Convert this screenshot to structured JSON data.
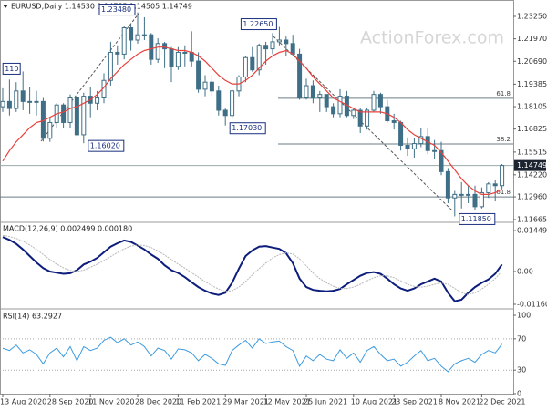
{
  "chart_data": [
    {
      "type": "candlestick",
      "title": "EURUSD,Daily  1.14530 1.14755 1.14505 1.14749",
      "watermark": "ActionForex.com",
      "categories": [
        "13 Aug 2020",
        null,
        null,
        null,
        null,
        null,
        null,
        "28 Sep 2020",
        null,
        null,
        null,
        null,
        null,
        "11 Nov 2020",
        null,
        null,
        null,
        null,
        null,
        null,
        "28 Dec 2020",
        null,
        null,
        null,
        null,
        null,
        "11 Feb 2021",
        null,
        null,
        null,
        null,
        null,
        null,
        "29 Mar 2021",
        null,
        null,
        null,
        null,
        null,
        "12 May 2021",
        null,
        null,
        null,
        null,
        null,
        "25 Jun 2021",
        null,
        null,
        null,
        null,
        null,
        null,
        "10 Aug 2021",
        null,
        null,
        null,
        null,
        null,
        "23 Sep 2021",
        null,
        null,
        null,
        null,
        null,
        null,
        "8 Nov 2021",
        null,
        null,
        null,
        null,
        null,
        "22 Dec 2021",
        null,
        null,
        null
      ],
      "open": [
        1.181,
        1.184,
        1.18,
        1.19,
        1.184,
        1.184,
        1.184,
        1.163,
        1.172,
        1.182,
        1.172,
        1.186,
        1.165,
        1.187,
        1.183,
        1.186,
        1.196,
        1.212,
        1.211,
        1.226,
        1.219,
        1.222,
        1.222,
        1.208,
        1.217,
        1.214,
        1.204,
        1.212,
        1.212,
        1.207,
        1.191,
        1.195,
        1.19,
        1.179,
        1.176,
        1.19,
        1.198,
        1.209,
        1.202,
        1.216,
        1.214,
        1.218,
        1.219,
        1.217,
        1.211,
        1.186,
        1.193,
        1.186,
        1.188,
        1.181,
        1.177,
        1.187,
        1.176,
        1.179,
        1.17,
        1.179,
        1.188,
        1.181,
        1.173,
        1.172,
        1.159,
        1.157,
        1.16,
        1.164,
        1.156,
        1.156,
        1.144,
        1.129,
        1.131,
        1.131,
        1.131,
        1.124,
        1.132,
        1.137,
        1.136
      ],
      "high": [
        1.1915,
        1.1965,
        1.195,
        1.2011,
        1.192,
        1.19,
        1.186,
        1.175,
        1.183,
        1.183,
        1.188,
        1.188,
        1.189,
        1.192,
        1.19,
        1.2,
        1.218,
        1.216,
        1.227,
        1.228,
        1.2348,
        1.232,
        1.223,
        1.22,
        1.218,
        1.215,
        1.215,
        1.216,
        1.224,
        1.212,
        1.199,
        1.199,
        1.193,
        1.18,
        1.191,
        1.199,
        1.21,
        1.215,
        1.217,
        1.218,
        1.223,
        1.2265,
        1.221,
        1.222,
        1.214,
        1.197,
        1.196,
        1.19,
        1.188,
        1.183,
        1.191,
        1.19,
        1.18,
        1.18,
        1.18,
        1.19,
        1.189,
        1.185,
        1.177,
        1.173,
        1.163,
        1.163,
        1.169,
        1.169,
        1.162,
        1.161,
        1.146,
        1.133,
        1.138,
        1.136,
        1.136,
        1.135,
        1.138,
        1.139,
        1.1483
      ],
      "low": [
        1.178,
        1.176,
        1.178,
        1.179,
        1.177,
        1.176,
        1.1612,
        1.161,
        1.169,
        1.169,
        1.169,
        1.164,
        1.1602,
        1.175,
        1.179,
        1.183,
        1.193,
        1.205,
        1.208,
        1.213,
        1.217,
        1.219,
        1.205,
        1.206,
        1.203,
        1.195,
        1.202,
        1.204,
        1.204,
        1.189,
        1.187,
        1.187,
        1.176,
        1.1703,
        1.174,
        1.187,
        1.195,
        1.201,
        1.199,
        1.205,
        1.211,
        1.216,
        1.21,
        1.21,
        1.185,
        1.185,
        1.183,
        1.178,
        1.178,
        1.175,
        1.175,
        1.175,
        1.174,
        1.166,
        1.168,
        1.178,
        1.177,
        1.172,
        1.168,
        1.156,
        1.153,
        1.152,
        1.158,
        1.154,
        1.151,
        1.142,
        1.126,
        1.1185,
        1.123,
        1.126,
        1.122,
        1.123,
        1.129,
        1.127,
        1.134
      ],
      "close": [
        1.184,
        1.18,
        1.19,
        1.184,
        1.184,
        1.184,
        1.163,
        1.172,
        1.182,
        1.172,
        1.186,
        1.165,
        1.187,
        1.183,
        1.186,
        1.196,
        1.212,
        1.211,
        1.226,
        1.219,
        1.222,
        1.222,
        1.208,
        1.217,
        1.214,
        1.204,
        1.212,
        1.212,
        1.207,
        1.191,
        1.195,
        1.19,
        1.179,
        1.176,
        1.19,
        1.198,
        1.209,
        1.202,
        1.216,
        1.214,
        1.218,
        1.219,
        1.217,
        1.211,
        1.186,
        1.193,
        1.186,
        1.188,
        1.181,
        1.177,
        1.187,
        1.176,
        1.179,
        1.17,
        1.179,
        1.188,
        1.181,
        1.173,
        1.172,
        1.159,
        1.157,
        1.16,
        1.164,
        1.156,
        1.156,
        1.144,
        1.129,
        1.131,
        1.131,
        1.131,
        1.124,
        1.132,
        1.137,
        1.136,
        1.14749
      ],
      "color": "#3f6f86",
      "series": [
        {
          "color": "#e8413c",
          "values": [
            1.15,
            1.156,
            1.161,
            1.165,
            1.169,
            1.172,
            1.173,
            1.175,
            1.177,
            1.178,
            1.18,
            1.181,
            1.183,
            1.185,
            1.188,
            1.192,
            1.197,
            1.201,
            1.205,
            1.208,
            1.211,
            1.213,
            1.214,
            1.215,
            1.215,
            1.214,
            1.213,
            1.213,
            1.212,
            1.21,
            1.207,
            1.203,
            1.199,
            1.196,
            1.194,
            1.194,
            1.196,
            1.199,
            1.203,
            1.207,
            1.21,
            1.212,
            1.213,
            1.211,
            1.207,
            1.203,
            1.198,
            1.194,
            1.19,
            1.186,
            1.184,
            1.182,
            1.18,
            1.178,
            1.178,
            1.178,
            1.178,
            1.177,
            1.175,
            1.172,
            1.168,
            1.165,
            1.163,
            1.161,
            1.159,
            1.155,
            1.15,
            1.145,
            1.14,
            1.136,
            1.133,
            1.131,
            1.131,
            1.132,
            1.134
          ]
        }
      ],
      "annotations": [
        {
          "label": "110",
          "value": 1.2011
        },
        {
          "label": "1.16020",
          "value": 1.1602
        },
        {
          "label": "1.23480",
          "value": 1.2348
        },
        {
          "label": "1.17030",
          "value": 1.1703
        },
        {
          "label": "1.22650",
          "value": 1.2265
        },
        {
          "label": "1.11850",
          "value": 1.1185
        }
      ],
      "levels": [
        {
          "label": "61.8",
          "value": 1.1858
        },
        {
          "label": "38.2",
          "value": 1.1598
        },
        {
          "label": "61.8",
          "value": 1.1296
        }
      ],
      "ylim": [
        1.11561,
        1.24081
      ],
      "yticks": [
        {
          "value": 1.2325,
          "label": "1.23250"
        },
        {
          "value": 1.2197,
          "label": "1.21970"
        },
        {
          "value": 1.2069,
          "label": "1.20690"
        },
        {
          "value": 1.19385,
          "label": "1.19385"
        },
        {
          "value": 1.18105,
          "label": "1.18105"
        },
        {
          "value": 1.16825,
          "label": "1.16825"
        },
        {
          "value": 1.15515,
          "label": "1.15515"
        },
        {
          "value": 1.1422,
          "label": "1.14220"
        },
        {
          "value": 1.1296,
          "label": "1.12960"
        },
        {
          "value": 1.11665,
          "label": "1.11665"
        }
      ]
    },
    {
      "type": "line",
      "title": "MACD(12,26,9) 0.002499 0.000180",
      "series": [
        {
          "color": "#0d1d7c",
          "values": [
            0.0122,
            0.0112,
            0.0098,
            0.0078,
            0.0055,
            0.0032,
            0.0012,
            0.0,
            -0.0004,
            -0.0008,
            -0.0006,
            0.0005,
            0.0025,
            0.0035,
            0.0048,
            0.0068,
            0.0088,
            0.01,
            0.011,
            0.0105,
            0.0092,
            0.0078,
            0.006,
            0.0045,
            0.0022,
            0.0005,
            -0.0005,
            -0.002,
            -0.0038,
            -0.0055,
            -0.0068,
            -0.0078,
            -0.0083,
            -0.0075,
            -0.004,
            0.001,
            0.0055,
            0.0075,
            0.0088,
            0.009,
            0.0085,
            0.008,
            0.0065,
            0.003,
            -0.0025,
            -0.0055,
            -0.0065,
            -0.0068,
            -0.007,
            -0.0068,
            -0.0062,
            -0.0045,
            -0.003,
            -0.0015,
            -0.0005,
            -0.0002,
            -0.0008,
            -0.0025,
            -0.0045,
            -0.006,
            -0.0068,
            -0.006,
            -0.0045,
            -0.0035,
            -0.0025,
            -0.0035,
            -0.0075,
            -0.0105,
            -0.01,
            -0.0075,
            -0.0055,
            -0.004,
            -0.0028,
            -0.0008,
            0.002499
          ]
        },
        {
          "color": "#b8b8b8",
          "values": [
            0.0128,
            0.0124,
            0.0117,
            0.0107,
            0.0094,
            0.0078,
            0.006,
            0.0042,
            0.0026,
            0.0013,
            0.0004,
            0.0,
            0.0005,
            0.0015,
            0.0026,
            0.0039,
            0.0053,
            0.0067,
            0.008,
            0.009,
            0.0094,
            0.0092,
            0.0085,
            0.0073,
            0.0058,
            0.0042,
            0.0026,
            0.0012,
            -0.0004,
            -0.002,
            -0.0036,
            -0.005,
            -0.0062,
            -0.007,
            -0.0068,
            -0.0055,
            -0.0035,
            -0.0012,
            0.001,
            0.003,
            0.0048,
            0.006,
            0.0066,
            0.0062,
            0.0045,
            0.002,
            -0.0005,
            -0.0025,
            -0.004,
            -0.0052,
            -0.006,
            -0.006,
            -0.0055,
            -0.0045,
            -0.0033,
            -0.0022,
            -0.0015,
            -0.0015,
            -0.0022,
            -0.0033,
            -0.0045,
            -0.0053,
            -0.0055,
            -0.0052,
            -0.0045,
            -0.004,
            -0.0045,
            -0.006,
            -0.0075,
            -0.0082,
            -0.0075,
            -0.0062,
            -0.0045,
            -0.0025,
            0.00018
          ]
        }
      ],
      "ylim": [
        -0.0129,
        0.0171
      ],
      "yticks": [
        0.014491,
        {
          "value": 0,
          "label": "0.00"
        },
        -0.011603
      ]
    },
    {
      "type": "line",
      "title": "RSI(14) 63.2927",
      "series": [
        {
          "color": "#3d9be0",
          "values": [
            58,
            55,
            62,
            52,
            56,
            50,
            38,
            52,
            58,
            47,
            60,
            42,
            60,
            55,
            58,
            68,
            72,
            65,
            70,
            62,
            66,
            60,
            48,
            58,
            55,
            44,
            57,
            56,
            52,
            42,
            50,
            45,
            38,
            36,
            55,
            62,
            68,
            58,
            70,
            64,
            66,
            67,
            60,
            55,
            35,
            48,
            42,
            50,
            44,
            42,
            56,
            45,
            52,
            40,
            55,
            60,
            50,
            42,
            44,
            35,
            40,
            48,
            55,
            42,
            45,
            35,
            28,
            38,
            42,
            45,
            40,
            50,
            55,
            52,
            63.2927
          ]
        }
      ],
      "levels": [
        70,
        30
      ],
      "ylim": [
        0,
        107
      ],
      "yticks": [
        100,
        70,
        30,
        0
      ]
    }
  ]
}
